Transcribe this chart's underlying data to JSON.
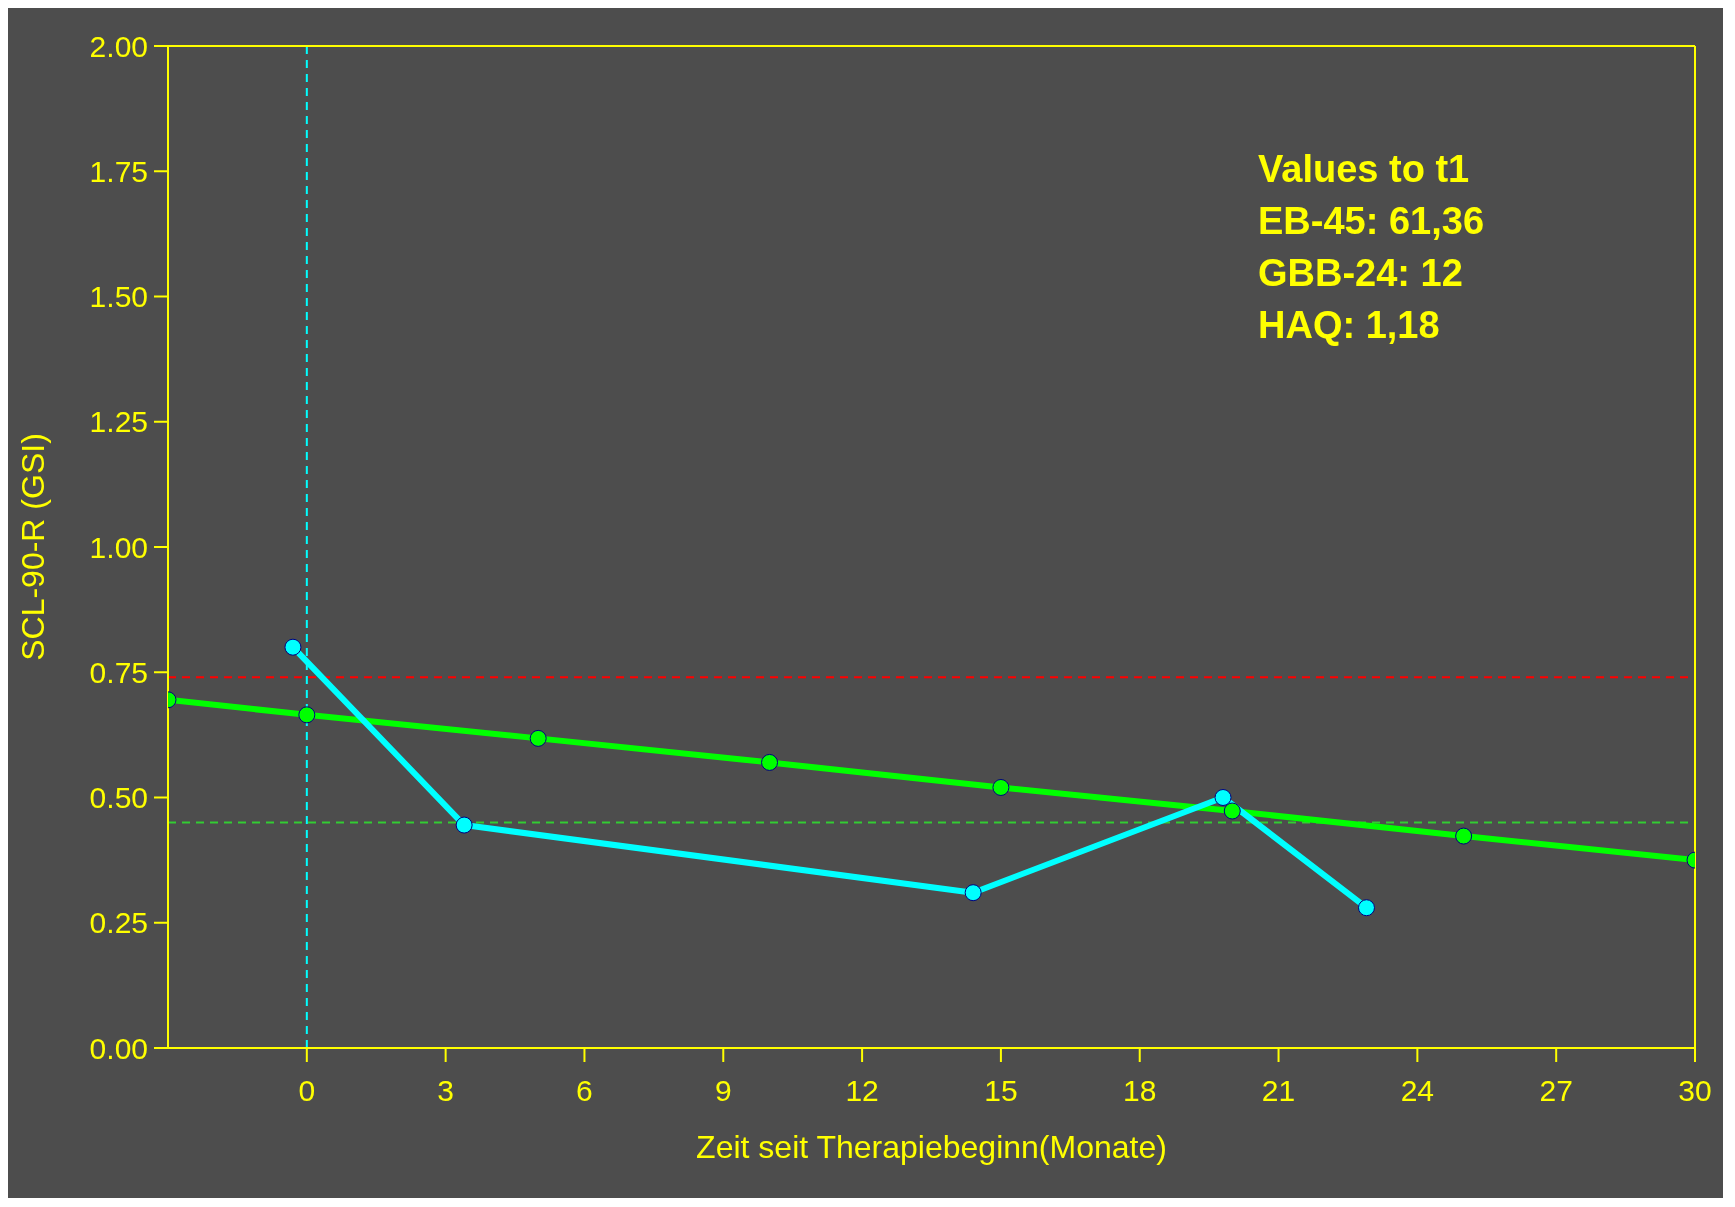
{
  "chart_data": {
    "type": "line",
    "xlabel": "Zeit seit Therapiebeginn(Monate)",
    "ylabel": "SCL-90-R (GSI)",
    "xlim": [
      -3,
      30
    ],
    "xticks": [
      0,
      3,
      6,
      9,
      12,
      15,
      18,
      21,
      24,
      27,
      30
    ],
    "ylim": [
      0,
      2
    ],
    "yticks": [
      {
        "value": 0,
        "label": "0.00"
      },
      {
        "value": 0.25,
        "label": "0.25"
      },
      {
        "value": 0.5,
        "label": "0.50"
      },
      {
        "value": 0.75,
        "label": "0.75"
      },
      {
        "value": 1,
        "label": "1.00"
      },
      {
        "value": 1.25,
        "label": "1.25"
      },
      {
        "value": 1.5,
        "label": "1.50"
      },
      {
        "value": 1.75,
        "label": "1.75"
      },
      {
        "value": 2,
        "label": "2.00"
      }
    ],
    "series": [
      {
        "color": "#00ff00",
        "x": [
          -3,
          0,
          5,
          10,
          15,
          20,
          25,
          30
        ],
        "values": [
          0.695,
          0.665,
          0.618,
          0.57,
          0.52,
          0.473,
          0.423,
          0.375
        ]
      },
      {
        "color": "#00ffff",
        "x": [
          -0.3,
          3.4,
          14.4,
          19.8,
          22.9
        ],
        "values": [
          0.8,
          0.445,
          0.31,
          0.5,
          0.28
        ]
      }
    ],
    "ref_lines": [
      {
        "axis": "y",
        "value": 0.74,
        "color": "#ff0000",
        "line_style": "dashed"
      },
      {
        "axis": "y",
        "value": 0.45,
        "color": "#33cc33",
        "line_style": "dashed"
      },
      {
        "axis": "x",
        "value": 0,
        "color": "#00ffff",
        "line_style": "dashed"
      }
    ],
    "annotations": [
      "Values to t1",
      "EB-45: 61,36",
      "GBB-24: 12",
      "HAQ: 1,18"
    ],
    "marker": "circle",
    "line_style": "solid",
    "legend": false
  }
}
